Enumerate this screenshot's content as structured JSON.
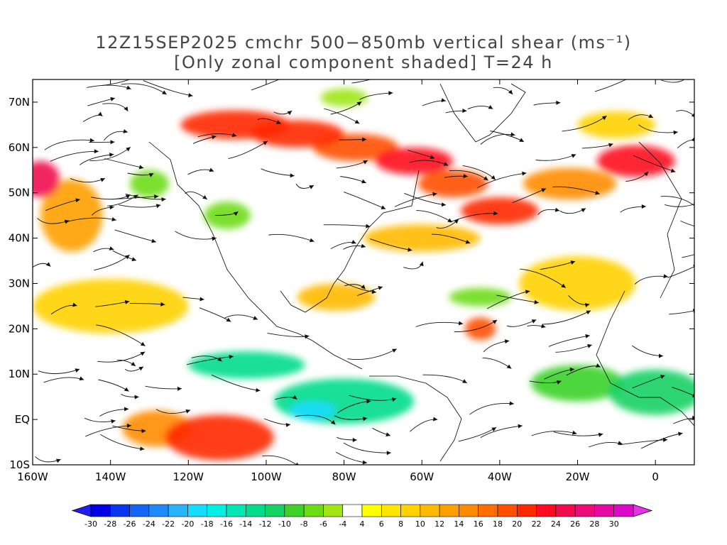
{
  "title": {
    "line1": "12Z15SEP2025 cmchr 500−850mb vertical shear (ms⁻¹)",
    "line2": "[Only zonal component shaded] T=24 h"
  },
  "map": {
    "lon_range": [
      -160,
      10
    ],
    "lat_range": [
      -10,
      75
    ],
    "lat_ticks": [
      {
        "value": 70,
        "label": "70N"
      },
      {
        "value": 60,
        "label": "60N"
      },
      {
        "value": 50,
        "label": "50N"
      },
      {
        "value": 40,
        "label": "40N"
      },
      {
        "value": 30,
        "label": "30N"
      },
      {
        "value": 20,
        "label": "20N"
      },
      {
        "value": 10,
        "label": "10N"
      },
      {
        "value": 0,
        "label": "EQ"
      },
      {
        "value": -10,
        "label": "10S"
      }
    ],
    "lon_ticks": [
      {
        "value": -160,
        "label": "160W"
      },
      {
        "value": -140,
        "label": "140W"
      },
      {
        "value": -120,
        "label": "120W"
      },
      {
        "value": -100,
        "label": "100W"
      },
      {
        "value": -80,
        "label": "80W"
      },
      {
        "value": -60,
        "label": "60W"
      },
      {
        "value": -40,
        "label": "40W"
      },
      {
        "value": -20,
        "label": "20W"
      },
      {
        "value": 0,
        "label": "0"
      }
    ]
  },
  "colorbar": {
    "labels": [
      "-30",
      "-28",
      "-26",
      "-24",
      "-22",
      "-20",
      "-18",
      "-16",
      "-14",
      "-12",
      "-10",
      "-8",
      "-6",
      "-4",
      "4",
      "6",
      "8",
      "10",
      "12",
      "14",
      "16",
      "18",
      "20",
      "22",
      "24",
      "26",
      "28",
      "30"
    ],
    "colors": [
      "#0000e6",
      "#0a35f0",
      "#1464f5",
      "#1e8cf8",
      "#28b4fa",
      "#14dcff",
      "#00f0e6",
      "#00e6b4",
      "#00dc8c",
      "#14d264",
      "#3cd228",
      "#6edc14",
      "#a0e614",
      "#ffffff",
      "#ffff00",
      "#ffe600",
      "#ffd200",
      "#ffb900",
      "#ffa000",
      "#ff8c00",
      "#ff6e00",
      "#ff5000",
      "#ff2800",
      "#ff0a1e",
      "#f00a50",
      "#ee0a78",
      "#e60aa0",
      "#dc0ac8"
    ],
    "under_color": "#1e1ef0",
    "over_color": "#e632e6"
  },
  "shear_regions": [
    {
      "lon": -108,
      "lat": 65,
      "rx": 14,
      "ry": 3.2,
      "u": 20
    },
    {
      "lon": -92,
      "lat": 63,
      "rx": 12,
      "ry": 3,
      "u": 20
    },
    {
      "lon": -77,
      "lat": 60,
      "rx": 11,
      "ry": 3,
      "u": 18
    },
    {
      "lon": -62,
      "lat": 57,
      "rx": 10,
      "ry": 3,
      "u": 22
    },
    {
      "lon": -52,
      "lat": 52,
      "rx": 9,
      "ry": 3,
      "u": 18
    },
    {
      "lon": -40,
      "lat": 46,
      "rx": 10,
      "ry": 3,
      "u": 20
    },
    {
      "lon": -22,
      "lat": 52,
      "rx": 12,
      "ry": 3.5,
      "u": 14
    },
    {
      "lon": -5,
      "lat": 57,
      "rx": 10,
      "ry": 3.5,
      "u": 22
    },
    {
      "lon": -158,
      "lat": 53,
      "rx": 5,
      "ry": 4,
      "u": 24
    },
    {
      "lon": -150,
      "lat": 45,
      "rx": 8,
      "ry": 8,
      "u": 12
    },
    {
      "lon": -112,
      "lat": -4,
      "rx": 14,
      "ry": 5,
      "u": 20
    },
    {
      "lon": -128,
      "lat": -2,
      "rx": 9,
      "ry": 4,
      "u": 14
    },
    {
      "lon": -45,
      "lat": 20,
      "rx": 4,
      "ry": 2.5,
      "u": 18
    },
    {
      "lon": -82,
      "lat": 27,
      "rx": 10,
      "ry": 3,
      "u": 10
    },
    {
      "lon": -20,
      "lat": 30,
      "rx": 15,
      "ry": 6,
      "u": 8
    },
    {
      "lon": -140,
      "lat": 25,
      "rx": 20,
      "ry": 6,
      "u": 8
    },
    {
      "lon": -60,
      "lat": 40,
      "rx": 15,
      "ry": 3,
      "u": 10
    },
    {
      "lon": -10,
      "lat": 65,
      "rx": 10,
      "ry": 3,
      "u": 8
    },
    {
      "lon": -105,
      "lat": 12,
      "rx": 15,
      "ry": 3,
      "u": -14
    },
    {
      "lon": -80,
      "lat": 4,
      "rx": 18,
      "ry": 5,
      "u": -14
    },
    {
      "lon": -88,
      "lat": 2,
      "rx": 6,
      "ry": 2,
      "u": -20
    },
    {
      "lon": -20,
      "lat": 8,
      "rx": 12,
      "ry": 4,
      "u": -10
    },
    {
      "lon": 0,
      "lat": 6,
      "rx": 12,
      "ry": 5,
      "u": -12
    },
    {
      "lon": -45,
      "lat": 27,
      "rx": 8,
      "ry": 2,
      "u": -8
    },
    {
      "lon": -110,
      "lat": 45,
      "rx": 6,
      "ry": 3,
      "u": -8
    },
    {
      "lon": -130,
      "lat": 52,
      "rx": 5,
      "ry": 3,
      "u": -8
    },
    {
      "lon": -80,
      "lat": 71,
      "rx": 6,
      "ry": 2,
      "u": -6
    }
  ]
}
